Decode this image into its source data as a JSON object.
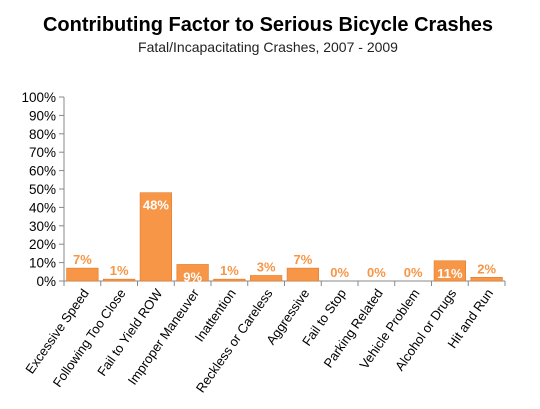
{
  "chart_data": {
    "type": "bar",
    "title": "Contributing Factor to Serious Bicycle Crashes",
    "subtitle": "Fatal/Incapacitating Crashes, 2007 - 2009",
    "categories": [
      "Excessive Speed",
      "Following Too Close",
      "Fail to Yield ROW",
      "Improper Maneuver",
      "Inattention",
      "Reckless or Careless",
      "Aggressive",
      "Fail to Stop",
      "Parking Related",
      "Vehicle Problem",
      "Alcohol or Drugs",
      "Hit and Run"
    ],
    "values": [
      7,
      1,
      48,
      9,
      1,
      3,
      7,
      0,
      0,
      0,
      11,
      2
    ],
    "data_labels": [
      "7%",
      "1%",
      "48%",
      "9%",
      "1%",
      "3%",
      "7%",
      "0%",
      "0%",
      "0%",
      "11%",
      "2%"
    ],
    "ylim": [
      0,
      100
    ],
    "yticks": [
      "0%",
      "10%",
      "20%",
      "30%",
      "40%",
      "50%",
      "60%",
      "70%",
      "80%",
      "90%",
      "100%"
    ],
    "xlabel": "",
    "ylabel": "",
    "grid": false,
    "legend": "none",
    "colors": {
      "bar": "#F79646",
      "bar_stroke": "#E07A28",
      "label_outside": "#F79646",
      "label_inside": "#ffffff",
      "axis": "#888888"
    }
  }
}
